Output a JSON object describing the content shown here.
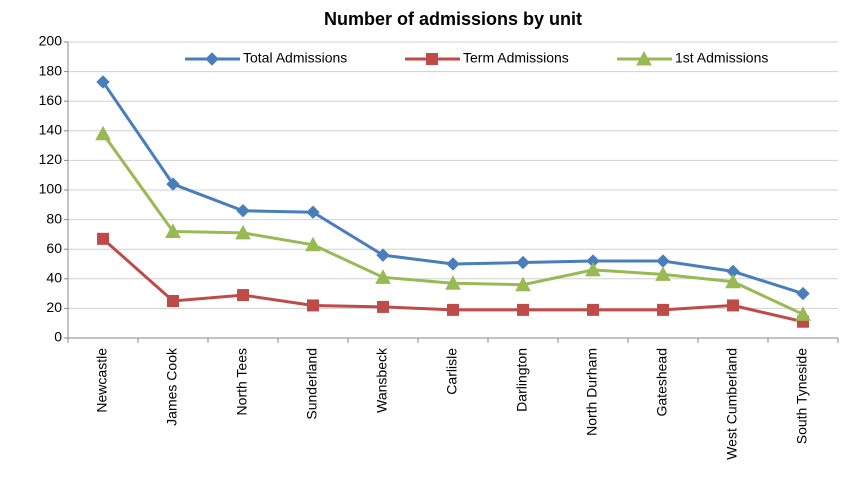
{
  "chart_data": {
    "type": "line",
    "title": "Number of admissions by unit",
    "categories": [
      "Newcastle",
      "James Cook",
      "North Tees",
      "Sunderland",
      "Wansbeck",
      "Carlisle",
      "Darlington",
      "North Durham",
      "Gateshead",
      "West Cumberland",
      "South Tyneside"
    ],
    "series": [
      {
        "name": "Total Admissions",
        "color": "#4a7ebb",
        "marker": "diamond",
        "values": [
          173,
          104,
          86,
          85,
          56,
          50,
          51,
          52,
          52,
          45,
          30
        ]
      },
      {
        "name": "Term Admissions",
        "color": "#be4b48",
        "marker": "square",
        "values": [
          67,
          25,
          29,
          22,
          21,
          19,
          19,
          19,
          19,
          22,
          11
        ]
      },
      {
        "name": "1st Admissions",
        "color": "#98b954",
        "marker": "triangle",
        "values": [
          138,
          72,
          71,
          63,
          41,
          37,
          36,
          46,
          43,
          38,
          16
        ]
      }
    ],
    "ylim": [
      0,
      200
    ],
    "yticks": [
      0,
      20,
      40,
      60,
      80,
      100,
      120,
      140,
      160,
      180,
      200
    ],
    "grid": true,
    "legend": "top"
  }
}
